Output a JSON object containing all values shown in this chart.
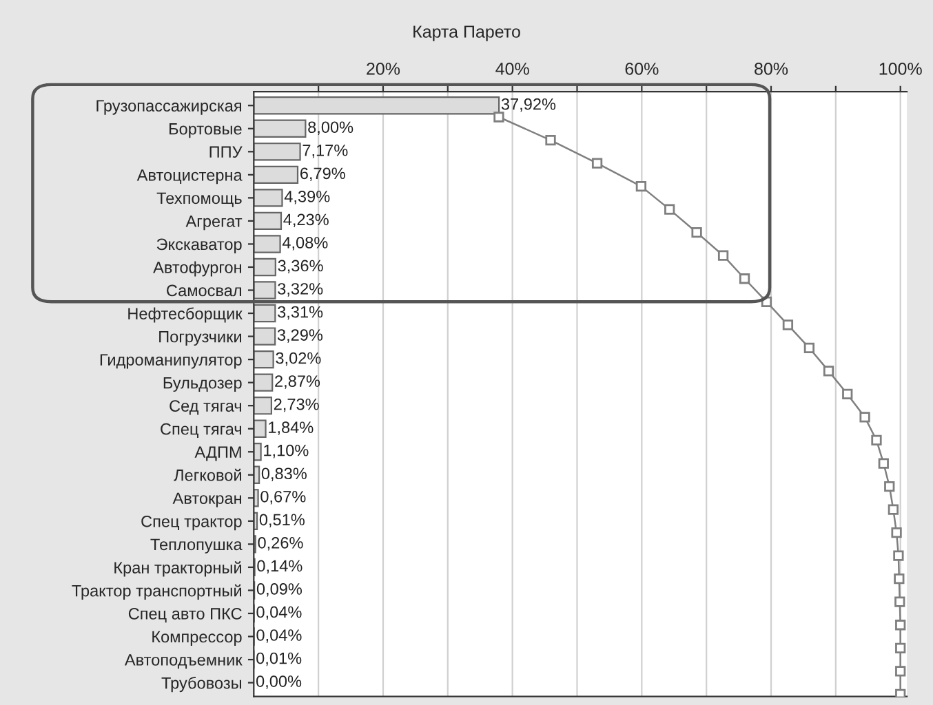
{
  "chart_data": {
    "type": "bar",
    "title": "Карта Парето",
    "orientation": "horizontal",
    "categories": [
      "Грузопассажирская",
      "Бортовые",
      "ППУ",
      "Автоцистерна",
      "Техпомощь",
      "Агрегат",
      "Экскаватор",
      "Автофургон",
      "Самосвал",
      "Нефтесборщик",
      "Погрузчики",
      "Гидроманипулятор",
      "Бульдозер",
      "Сед тягач",
      "Спец тягач",
      "АДПМ",
      "Легковой",
      "Автокран",
      "Спец трактор",
      "Теплопушка",
      "Кран тракторный",
      "Трактор транспортный",
      "Спец авто ПКС",
      "Компрессор",
      "Автоподъемник",
      "Трубовозы"
    ],
    "series": [
      {
        "color": "#dcdcdc",
        "values": [
          37.92,
          8.0,
          7.17,
          6.79,
          4.39,
          4.23,
          4.08,
          3.36,
          3.32,
          3.31,
          3.29,
          3.02,
          2.87,
          2.73,
          1.84,
          1.1,
          0.83,
          0.67,
          0.51,
          0.26,
          0.14,
          0.09,
          0.04,
          0.04,
          0.01,
          0.0
        ],
        "value_labels": [
          "37,92%",
          "8,00%",
          "7,17%",
          "6,79%",
          "4,39%",
          "4,23%",
          "4,08%",
          "3,36%",
          "3,32%",
          "3,31%",
          "3,29%",
          "3,02%",
          "2,87%",
          "2,73%",
          "1,84%",
          "1,10%",
          "0,83%",
          "0,67%",
          "0,51%",
          "0,26%",
          "0,14%",
          "0,09%",
          "0,04%",
          "0,04%",
          "0,01%",
          "0,00%"
        ]
      },
      {
        "type": "line",
        "color": "#7f7f7f",
        "marker": "square",
        "line_style": "solid",
        "values": [
          37.9,
          45.9,
          53.1,
          59.9,
          64.3,
          68.5,
          72.6,
          75.9,
          79.3,
          82.6,
          85.9,
          88.9,
          91.8,
          94.5,
          96.3,
          97.4,
          98.3,
          98.9,
          99.4,
          99.7,
          99.8,
          99.9,
          100,
          100,
          100,
          100
        ]
      }
    ],
    "xlim": [
      0,
      101
    ],
    "xticks": [
      {
        "value": 10,
        "label": null
      },
      {
        "value": 20,
        "label": "20%"
      },
      {
        "value": 30,
        "label": null
      },
      {
        "value": 40,
        "label": "40%"
      },
      {
        "value": 50,
        "label": null
      },
      {
        "value": 60,
        "label": "60%"
      },
      {
        "value": 70,
        "label": null
      },
      {
        "value": 80,
        "label": "80%"
      },
      {
        "value": 90,
        "label": null
      },
      {
        "value": 100,
        "label": "100%"
      }
    ],
    "grid": "x",
    "legend": false
  }
}
